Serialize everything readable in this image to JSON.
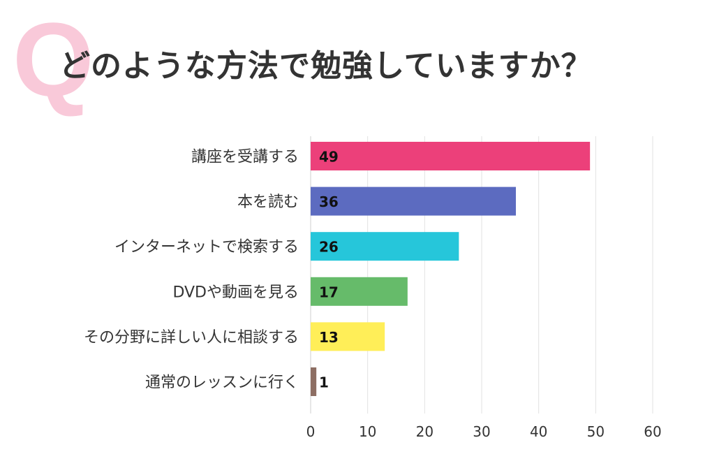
{
  "logo_letter": "Q",
  "chart_data": {
    "type": "bar",
    "orientation": "horizontal",
    "title": "どのような方法で勉強していますか？",
    "categories": [
      "講座を受講する",
      "本を読む",
      "インターネットで検索する",
      "DVDや動画を見る",
      "その分野に詳しい人に相談する",
      "通常のレッスンに行く"
    ],
    "values": [
      49,
      36,
      26,
      17,
      13,
      1
    ],
    "colors": [
      "#ec407a",
      "#5c6bc0",
      "#26c6da",
      "#66bb6a",
      "#ffee58",
      "#8d6e63"
    ],
    "xlim": [
      0,
      60
    ],
    "xticks": [
      "0",
      "10",
      "20",
      "30",
      "40",
      "50",
      "60"
    ],
    "grid": true,
    "xlabel": "",
    "ylabel": ""
  }
}
